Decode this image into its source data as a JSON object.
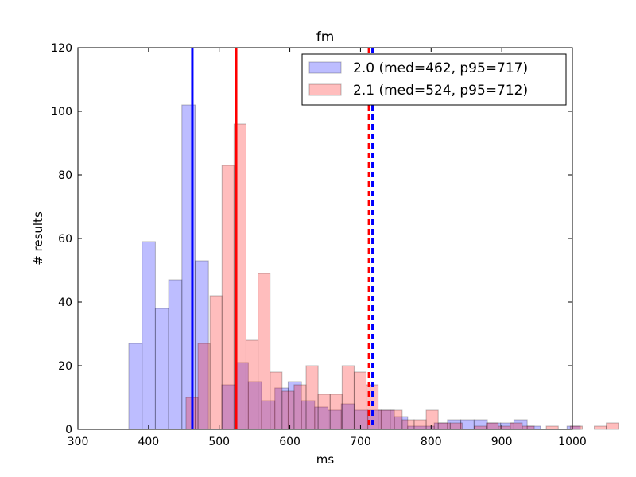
{
  "chart_data": {
    "type": "histogram",
    "title": "fm",
    "xlabel": "ms",
    "ylabel": "# results",
    "xlim": [
      300,
      1000
    ],
    "ylim": [
      0,
      120
    ],
    "xticks": [
      300,
      400,
      500,
      600,
      700,
      800,
      900,
      1000
    ],
    "yticks": [
      0,
      20,
      40,
      60,
      80,
      100,
      120
    ],
    "grid": false,
    "legend_position": "top-right",
    "series": [
      {
        "name": "2.0 (med=462, p95=717)",
        "color": "#0000ff",
        "fill": "#bcbcf7",
        "bin_start": 372,
        "bin_width": 18.8,
        "counts": [
          27,
          59,
          38,
          47,
          102,
          53,
          0,
          14,
          21,
          15,
          9,
          13,
          15,
          9,
          7,
          6,
          8,
          6,
          6,
          6,
          4,
          1,
          1,
          2,
          3,
          3,
          3,
          2,
          2,
          3,
          1,
          0,
          0,
          1
        ],
        "median": 462,
        "p95": 717
      },
      {
        "name": "2.1 (med=524, p95=712)",
        "color": "#ff0000",
        "fill": "#ffbcbc",
        "bin_start": 453,
        "bin_width": 17,
        "counts": [
          10,
          27,
          42,
          83,
          96,
          28,
          49,
          18,
          12,
          14,
          20,
          11,
          11,
          20,
          18,
          14,
          6,
          6,
          3,
          3,
          6,
          2,
          2,
          0,
          1,
          2,
          1,
          2,
          1,
          0,
          1,
          0,
          1,
          0,
          1,
          2
        ],
        "median": 524,
        "p95": 712
      }
    ]
  }
}
